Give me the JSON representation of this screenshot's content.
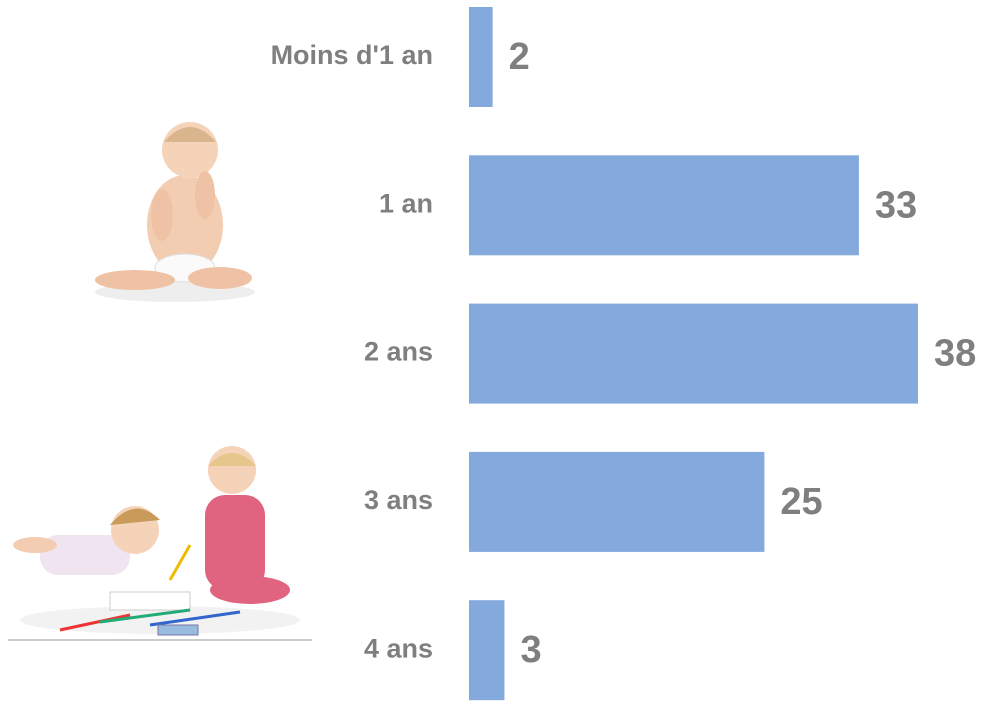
{
  "chart_data": {
    "type": "bar",
    "orientation": "horizontal",
    "categories": [
      "Moins d'1 an",
      "1 an",
      "2 ans",
      "3 ans",
      "4 ans"
    ],
    "values": [
      2,
      33,
      38,
      25,
      3
    ],
    "color": "#84a9dc"
  }
}
